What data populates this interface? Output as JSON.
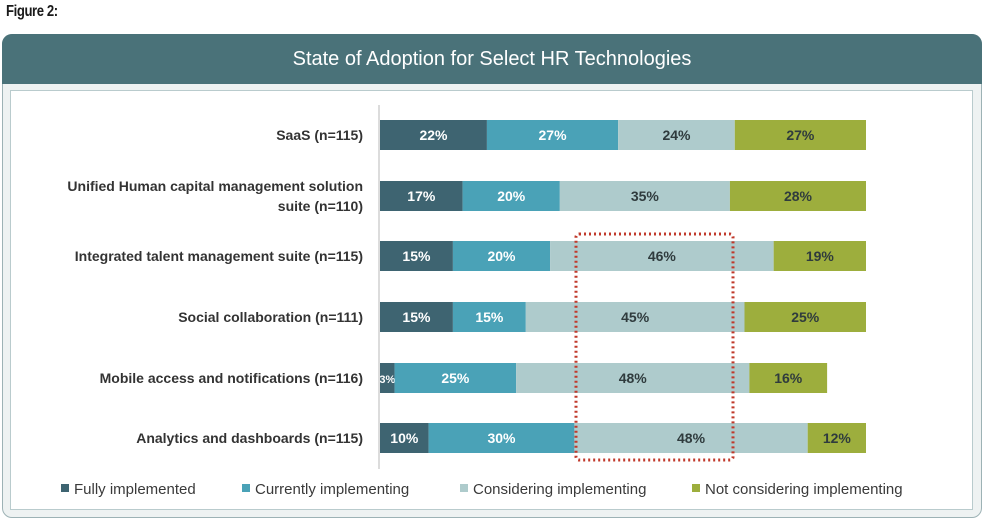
{
  "figure_label": "Figure 2:",
  "chart_data": {
    "type": "bar",
    "orientation": "horizontal",
    "stacked": true,
    "title": "State of Adoption for Select HR Technologies",
    "categories": [
      "SaaS (n=115)",
      "Unified Human capital management solution suite (n=110)",
      "Integrated talent management suite (n=115)",
      "Social collaboration (n=111)",
      "Mobile access and notifications (n=116)",
      "Analytics and dashboards (n=115)"
    ],
    "category_lines": [
      [
        "SaaS (n=115)"
      ],
      [
        "Unified Human capital management  solution",
        "suite (n=110)"
      ],
      [
        "Integrated talent management suite (n=115)"
      ],
      [
        "Social collaboration (n=111)"
      ],
      [
        "Mobile access and notifications (n=116)"
      ],
      [
        "Analytics and dashboards (n=115)"
      ]
    ],
    "series": [
      {
        "name": "Fully implemented",
        "color": "#3e6471",
        "values": [
          22,
          17,
          15,
          15,
          3,
          10
        ]
      },
      {
        "name": "Currently implementing",
        "color": "#4aa2b7",
        "values": [
          27,
          20,
          20,
          15,
          25,
          30
        ]
      },
      {
        "name": "Considering implementing",
        "color": "#aecbcc",
        "values": [
          24,
          35,
          46,
          45,
          48,
          48
        ]
      },
      {
        "name": "Not considering implementing",
        "color": "#9dae3d",
        "values": [
          27,
          28,
          19,
          25,
          16,
          12
        ]
      }
    ],
    "value_suffix": "%",
    "xlim": [
      0,
      100
    ],
    "grid": false,
    "legend_position": "bottom",
    "annotation": {
      "type": "dotted-box",
      "color": "#c0392b",
      "encloses_series": "Considering implementing",
      "rows": [
        2,
        5
      ]
    }
  }
}
